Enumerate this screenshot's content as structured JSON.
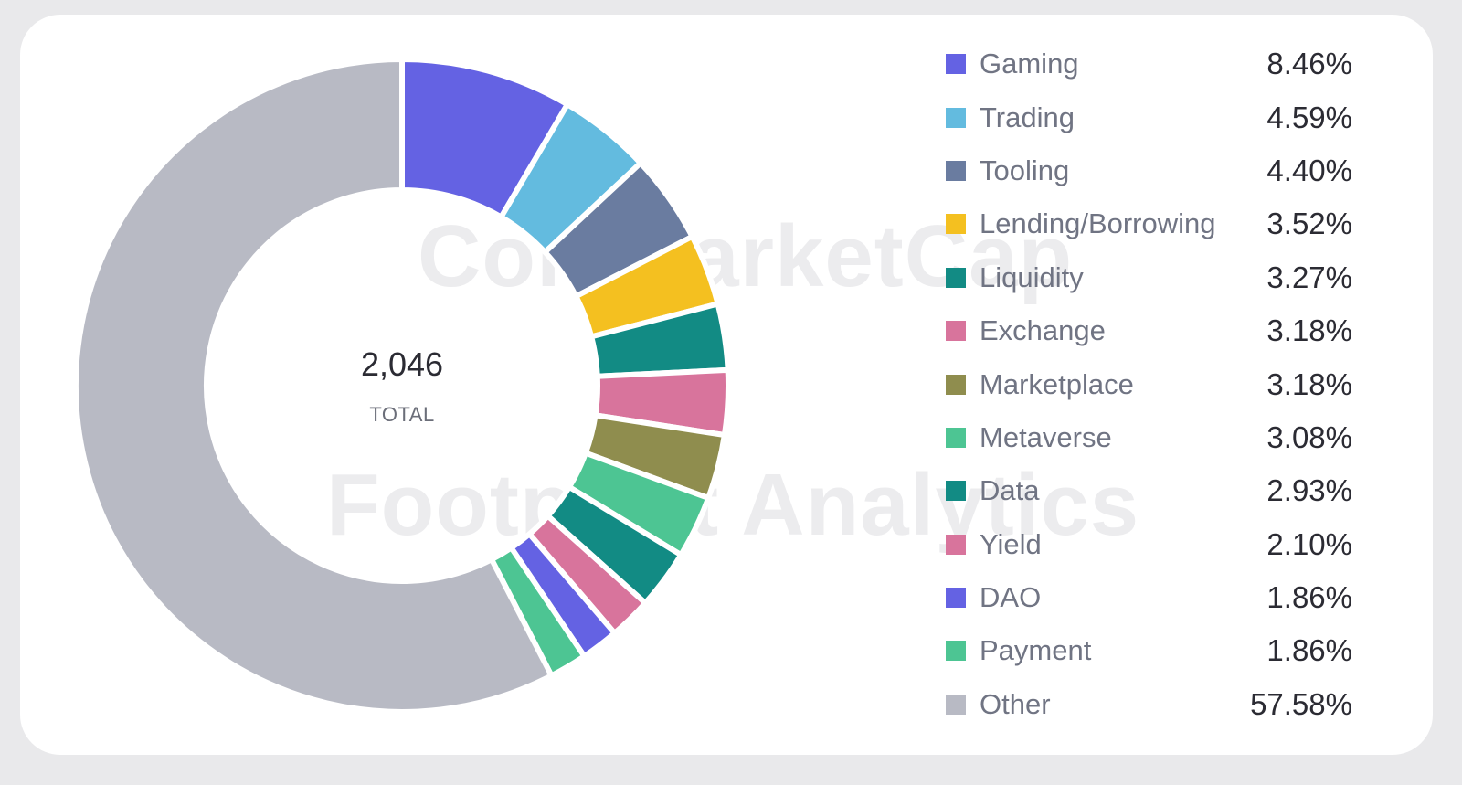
{
  "watermarks": {
    "top": "CoinMarketCap",
    "bottom": "Footprint Analytics"
  },
  "center": {
    "total": "2,046",
    "label": "TOTAL"
  },
  "chart_data": {
    "type": "pie",
    "donut": true,
    "legend_position": "right",
    "categories": [
      "Gaming",
      "Trading",
      "Tooling",
      "Lending/Borrowing",
      "Liquidity",
      "Exchange",
      "Marketplace",
      "Metaverse",
      "Data",
      "Yield",
      "DAO",
      "Payment",
      "Other"
    ],
    "values": [
      8.46,
      4.59,
      4.4,
      3.52,
      3.27,
      3.18,
      3.18,
      3.08,
      2.93,
      2.1,
      1.86,
      1.86,
      57.58
    ],
    "value_labels": [
      "8.46%",
      "4.59%",
      "4.40%",
      "3.52%",
      "3.27%",
      "3.18%",
      "3.18%",
      "3.08%",
      "2.93%",
      "2.10%",
      "1.86%",
      "1.86%",
      "57.58%"
    ],
    "colors": [
      "#6462e3",
      "#63bbdf",
      "#6a7ca0",
      "#f4c020",
      "#128b84",
      "#d8749c",
      "#8f8d4e",
      "#4dc593",
      "#128b84",
      "#d8749c",
      "#6462e3",
      "#4dc593",
      "#b8bac4"
    ]
  }
}
